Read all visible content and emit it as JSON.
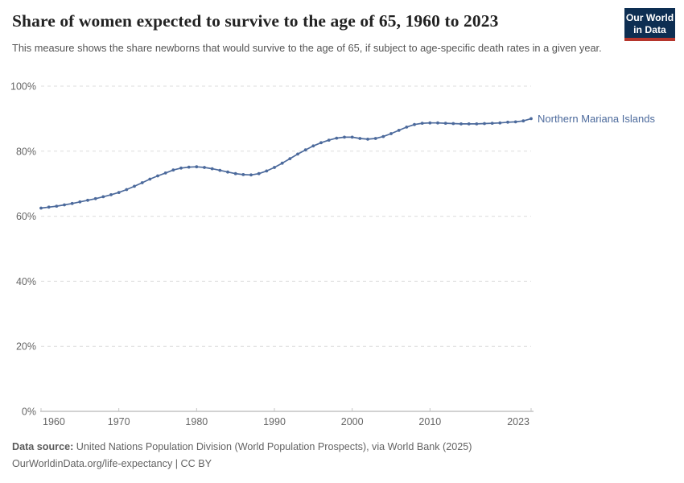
{
  "header": {
    "title": "Share of women expected to survive to the age of 65, 1960 to 2023",
    "subtitle": "This measure shows the share newborns that would survive to the age of 65, if subject to age-specific death rates in a given year.",
    "logo": {
      "line1": "Our World",
      "line2": "in Data",
      "bg_color": "#0d2e52",
      "accent_color": "#b5352c"
    }
  },
  "chart_data": {
    "type": "line",
    "title": "Share of women expected to survive to the age of 65, 1960 to 2023",
    "xlabel": "",
    "ylabel": "",
    "xlim": [
      1960,
      2023
    ],
    "ylim": [
      0,
      100
    ],
    "grid": "horizontal-dashed",
    "legend_position": "end-of-line-label",
    "ytick_values": [
      0,
      20,
      40,
      60,
      80,
      100
    ],
    "ytick_labels": [
      "0%",
      "20%",
      "40%",
      "60%",
      "80%",
      "100%"
    ],
    "xtick_values": [
      1960,
      1970,
      1980,
      1990,
      2000,
      2010,
      2023
    ],
    "xtick_labels": [
      "1960",
      "1970",
      "1980",
      "1990",
      "2000",
      "2010",
      "2023"
    ],
    "x": [
      1960,
      1961,
      1962,
      1963,
      1964,
      1965,
      1966,
      1967,
      1968,
      1969,
      1970,
      1971,
      1972,
      1973,
      1974,
      1975,
      1976,
      1977,
      1978,
      1979,
      1980,
      1981,
      1982,
      1983,
      1984,
      1985,
      1986,
      1987,
      1988,
      1989,
      1990,
      1991,
      1992,
      1993,
      1994,
      1995,
      1996,
      1997,
      1998,
      1999,
      2000,
      2001,
      2002,
      2003,
      2004,
      2005,
      2006,
      2007,
      2008,
      2009,
      2010,
      2011,
      2012,
      2013,
      2014,
      2015,
      2016,
      2017,
      2018,
      2019,
      2020,
      2021,
      2022,
      2023
    ],
    "series": [
      {
        "name": "Northern Mariana Islands",
        "color": "#4C6A9C",
        "values": [
          62.5,
          62.8,
          63.1,
          63.5,
          63.9,
          64.4,
          64.9,
          65.4,
          66.0,
          66.6,
          67.3,
          68.2,
          69.2,
          70.3,
          71.4,
          72.4,
          73.3,
          74.2,
          74.8,
          75.1,
          75.2,
          75.0,
          74.6,
          74.1,
          73.6,
          73.1,
          72.8,
          72.7,
          73.1,
          73.9,
          75.0,
          76.3,
          77.7,
          79.1,
          80.4,
          81.6,
          82.6,
          83.4,
          84.0,
          84.3,
          84.3,
          83.9,
          83.7,
          83.9,
          84.5,
          85.4,
          86.4,
          87.4,
          88.2,
          88.6,
          88.7,
          88.7,
          88.6,
          88.5,
          88.4,
          88.4,
          88.4,
          88.5,
          88.6,
          88.7,
          88.9,
          89.0,
          89.3,
          90.0
        ]
      }
    ]
  },
  "footer": {
    "source_label": "Data source:",
    "source_text": " United Nations Population Division (World Population Prospects), via World Bank (2025)",
    "note_text": "OurWorldinData.org/life-expectancy | CC BY"
  }
}
